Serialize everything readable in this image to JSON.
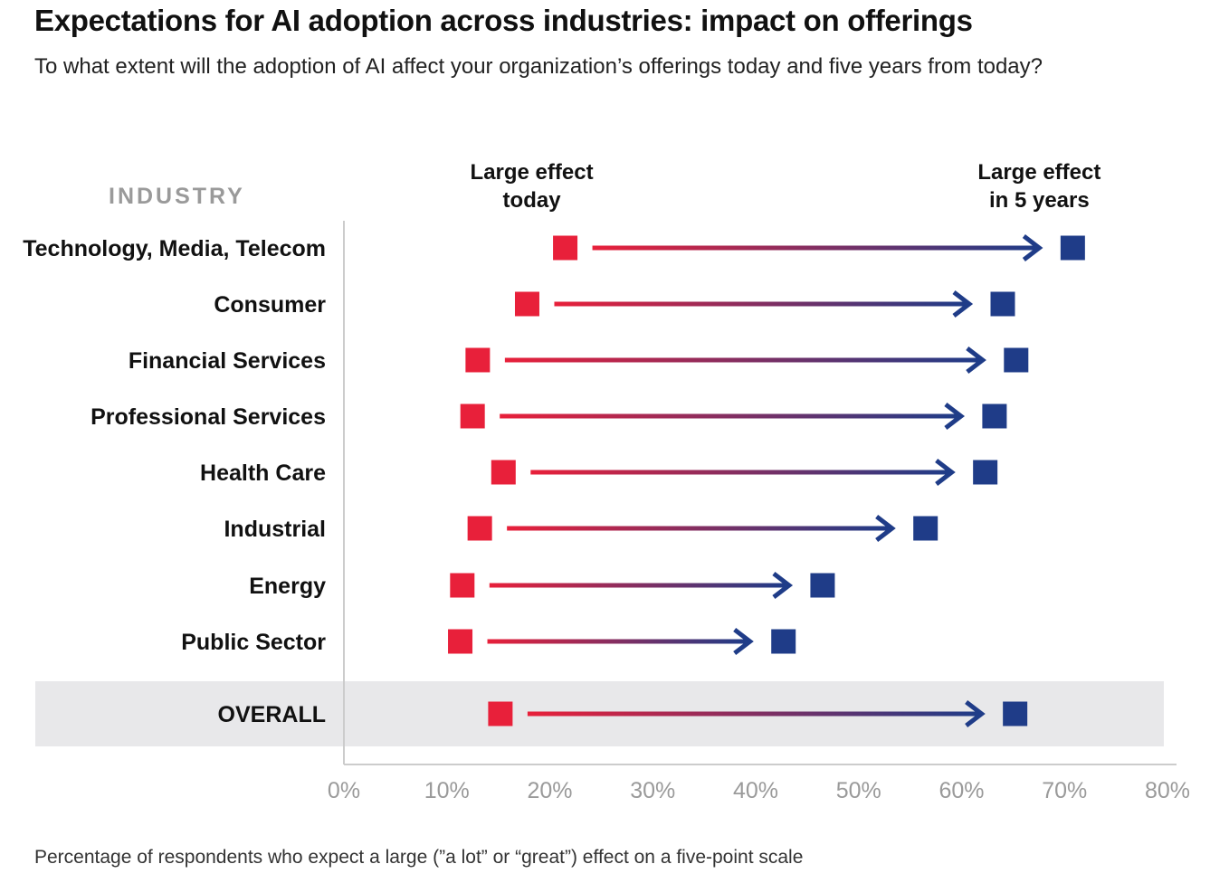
{
  "title": "Expectations for AI adoption across industries: impact on offerings",
  "subtitle": "To what extent will the adoption of AI affect your organization’s offerings today and five years from today?",
  "footnote": "Percentage of respondents who expect a large (”a lot” or “great”) effect on a five-point scale",
  "colors": {
    "today": "#e8203a",
    "five_years": "#1f3c88",
    "overall_band": "#e8e8ea",
    "axis": "#cccccc"
  },
  "chart_data": {
    "type": "dumbbell-arrow",
    "row_header": "INDUSTRY",
    "series": [
      {
        "name": "Large effect today",
        "label_lines": [
          "Large effect",
          "today"
        ]
      },
      {
        "name": "Large effect in 5 years",
        "label_lines": [
          "Large effect",
          "in 5 years"
        ]
      }
    ],
    "categories": [
      "Technology, Media, Telecom",
      "Consumer",
      "Financial Services",
      "Professional Services",
      "Health Care",
      "Industrial",
      "Energy",
      "Public Sector",
      "OVERALL"
    ],
    "today": [
      21.5,
      17.8,
      13,
      12.5,
      15.5,
      13.2,
      11.5,
      11.3,
      15.2
    ],
    "five_years": [
      70.8,
      64,
      65.3,
      63.2,
      62.3,
      56.5,
      46.5,
      42.7,
      65.2
    ],
    "highlight_category": "OVERALL",
    "x_axis": {
      "min": 0,
      "max": 80,
      "ticks": [
        "0%",
        "10%",
        "20%",
        "30%",
        "40%",
        "50%",
        "60%",
        "70%",
        "80%"
      ]
    }
  }
}
